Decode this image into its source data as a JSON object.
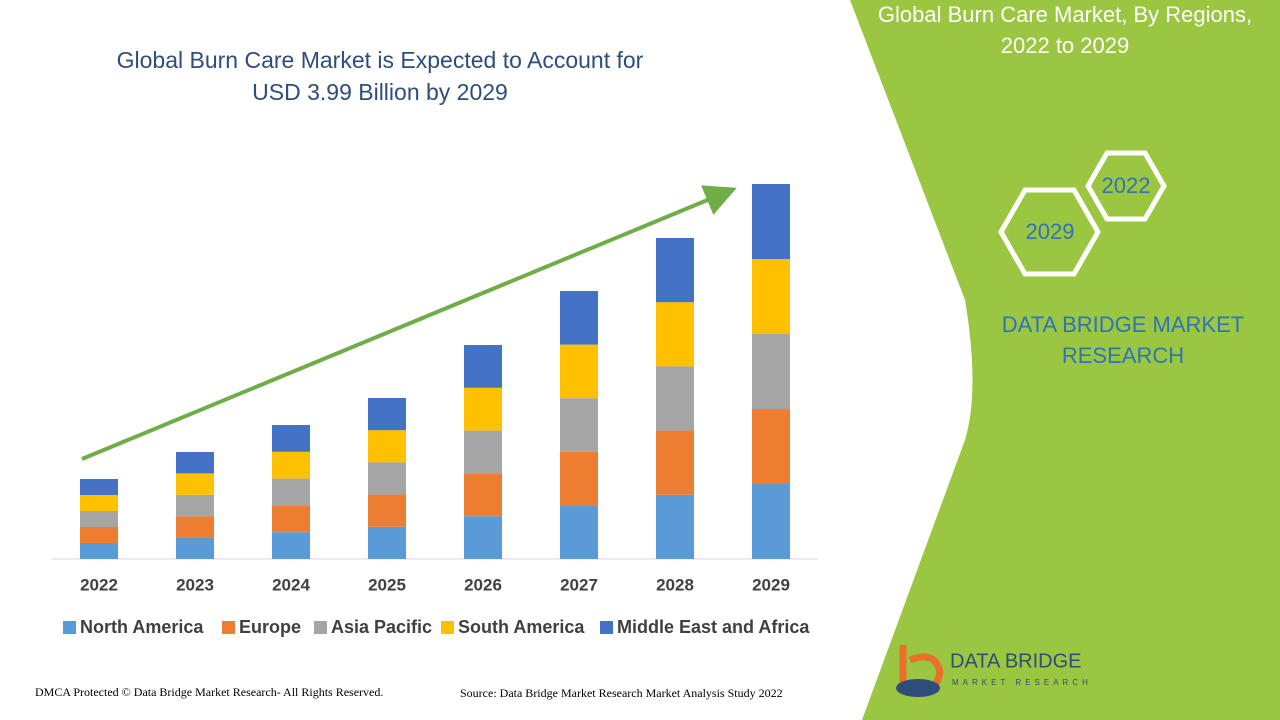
{
  "chart_data": {
    "type": "stacked-bar",
    "title": "Global Burn Care Market is Expected to Account for",
    "subtitle": "USD 3.99 Billion by 2029",
    "categories": [
      "2022",
      "2023",
      "2024",
      "2025",
      "2026",
      "2027",
      "2028",
      "2029"
    ],
    "series": [
      {
        "name": "North America",
        "color": "#5b9bd5",
        "values": [
          16,
          21.4,
          26.8,
          32.2,
          42.8,
          53.6,
          64.2,
          75
        ]
      },
      {
        "name": "Europe",
        "color": "#ed7d31",
        "values": [
          16,
          21.4,
          26.8,
          32.2,
          42.8,
          53.6,
          64.2,
          75
        ]
      },
      {
        "name": "Asia Pacific",
        "color": "#a5a5a5",
        "values": [
          16,
          21.4,
          26.8,
          32.2,
          42.8,
          53.6,
          64.2,
          75
        ]
      },
      {
        "name": "South America",
        "color": "#ffc000",
        "values": [
          16,
          21.4,
          26.8,
          32.2,
          42.8,
          53.6,
          64.2,
          75
        ]
      },
      {
        "name": "Middle East and Africa",
        "color": "#4472c4",
        "values": [
          16,
          21.4,
          26.8,
          32.2,
          42.8,
          53.6,
          64.2,
          75
        ]
      }
    ],
    "legend": "bottom"
  },
  "panel": {
    "title_line1": "Global Burn Care Market, By Regions,",
    "title_line2": "2022 to 2029",
    "hex_top": "2022",
    "hex_bottom": "2029",
    "brand_line1": "DATA BRIDGE MARKET",
    "brand_line2": "RESEARCH",
    "logo_name": "DATA BRIDGE",
    "logo_tagline": "MARKET RESEARCH"
  },
  "footer": {
    "copyright": "DMCA Protected © Data Bridge Market Research- All Rights Reserved.",
    "source": "Source: Data Bridge Market Research Market Analysis Study 2022"
  }
}
